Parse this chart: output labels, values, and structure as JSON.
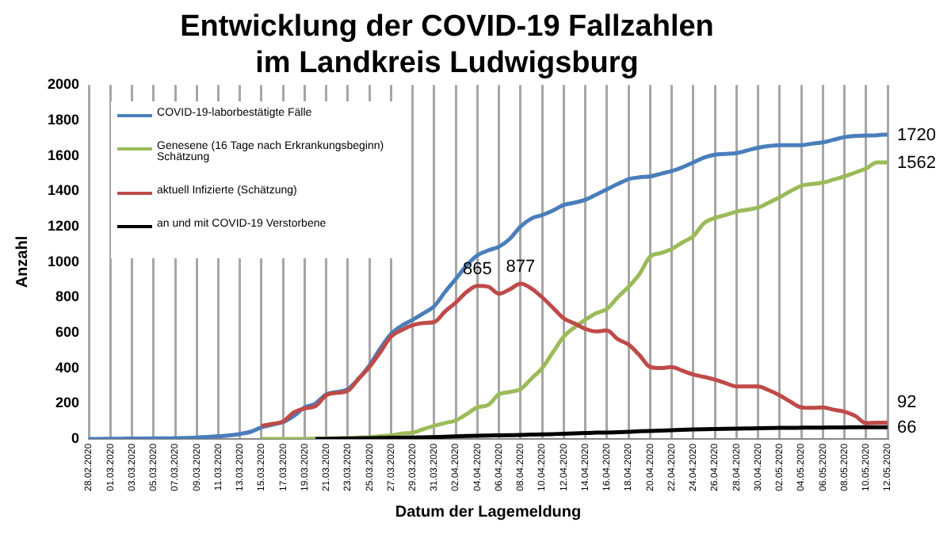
{
  "chart_data": {
    "type": "line",
    "title": "Entwicklung der COVID-19 Fallzahlen\nim Landkreis Ludwigsburg",
    "xlabel": "Datum der Lagemeldung",
    "ylabel": "Anzahl",
    "categories": [
      "28.02.2020",
      null,
      "01.03.2020",
      null,
      "03.03.2020",
      null,
      "05.03.2020",
      null,
      "07.03.2020",
      null,
      "09.03.2020",
      null,
      "11.03.2020",
      null,
      "13.03.2020",
      null,
      "15.03.2020",
      null,
      "17.03.2020",
      null,
      "19.03.2020",
      null,
      "21.03.2020",
      null,
      "23.03.2020",
      null,
      "25.03.2020",
      null,
      "27.03.2020",
      null,
      "29.03.2020",
      null,
      "31.03.2020",
      null,
      "02.04.2020",
      null,
      "04.04.2020",
      null,
      "06.04.2020",
      null,
      "08.04.2020",
      null,
      "10.04.2020",
      null,
      "12.04.2020",
      null,
      "14.04.2020",
      null,
      "16.04.2020",
      null,
      "18.04.2020",
      null,
      "20.04.2020",
      null,
      "22.04.2020",
      null,
      "24.04.2020",
      null,
      "26.04.2020",
      null,
      "28.04.2020",
      null,
      "30.04.2020",
      null,
      "02.05.2020",
      null,
      "04.05.2020",
      null,
      "06.05.2020",
      null,
      "08.05.2020",
      null,
      "10.05.2020",
      null,
      "12.05.2020"
    ],
    "series": [
      {
        "name": "COVID-19-laborbestätigte Fälle",
        "color": "#4a7ebb",
        "values": [
          0,
          0,
          1,
          1,
          2,
          2,
          3,
          3,
          4,
          5,
          8,
          11,
          15,
          20,
          28,
          40,
          65,
          80,
          95,
          130,
          178,
          200,
          252,
          265,
          281,
          340,
          415,
          510,
          593,
          640,
          673,
          710,
          750,
          830,
          904,
          980,
          1037,
          1065,
          1086,
          1130,
          1200,
          1245,
          1265,
          1290,
          1322,
          1335,
          1351,
          1380,
          1410,
          1440,
          1468,
          1478,
          1483,
          1498,
          1513,
          1535,
          1562,
          1590,
          1606,
          1610,
          1615,
          1630,
          1645,
          1655,
          1660,
          1660,
          1660,
          1668,
          1675,
          1690,
          1705,
          1712,
          1714,
          1716,
          1720
        ],
        "value_labels": [
          null,
          null,
          null,
          null,
          null,
          null,
          null,
          null,
          null,
          null,
          null,
          null,
          null,
          null,
          null,
          null,
          null,
          null,
          null,
          null,
          null,
          null,
          null,
          null,
          null,
          null,
          null,
          null,
          null,
          null,
          null,
          null,
          null,
          null,
          null,
          null,
          null,
          null,
          null,
          null,
          null,
          null,
          null,
          null,
          null,
          null,
          null,
          null,
          null,
          null,
          null,
          null,
          null,
          null,
          null,
          null,
          null,
          null,
          null,
          null,
          null,
          null,
          null,
          null,
          null,
          null,
          null,
          null,
          null,
          null,
          null,
          null,
          null,
          null,
          "1720"
        ]
      },
      {
        "name": "Genesene (16 Tage nach Erkrankungsbeginn) Schätzung",
        "color": "#9bbb59",
        "values": [
          null,
          null,
          null,
          null,
          null,
          null,
          null,
          null,
          null,
          null,
          null,
          null,
          null,
          null,
          null,
          null,
          0,
          0,
          0,
          0,
          0,
          1,
          2,
          3,
          5,
          8,
          10,
          15,
          20,
          30,
          35,
          55,
          74,
          90,
          104,
          140,
          178,
          192,
          252,
          265,
          281,
          340,
          400,
          490,
          578,
          630,
          673,
          710,
          735,
          800,
          859,
          930,
          1030,
          1050,
          1073,
          1110,
          1145,
          1219,
          1248,
          1265,
          1284,
          1295,
          1307,
          1335,
          1365,
          1400,
          1430,
          1440,
          1448,
          1465,
          1483,
          1505,
          1527,
          1562,
          1562
        ],
        "value_labels": [
          null,
          null,
          null,
          null,
          null,
          null,
          null,
          null,
          null,
          null,
          null,
          null,
          null,
          null,
          null,
          null,
          null,
          null,
          null,
          null,
          null,
          null,
          null,
          null,
          null,
          null,
          null,
          null,
          null,
          null,
          null,
          null,
          null,
          null,
          null,
          null,
          null,
          null,
          null,
          null,
          null,
          null,
          null,
          null,
          null,
          null,
          null,
          null,
          null,
          null,
          null,
          null,
          null,
          null,
          null,
          null,
          null,
          null,
          null,
          null,
          null,
          null,
          null,
          null,
          null,
          null,
          null,
          null,
          null,
          null,
          null,
          null,
          null,
          null,
          "1562"
        ]
      },
      {
        "name": "aktuell Infizierte (Schätzung)",
        "color": "#be4b48",
        "values": [
          null,
          null,
          null,
          null,
          null,
          null,
          null,
          null,
          null,
          null,
          null,
          null,
          null,
          null,
          null,
          null,
          74,
          85,
          98,
          150,
          172,
          185,
          246,
          260,
          272,
          340,
          406,
          490,
          578,
          615,
          643,
          655,
          660,
          720,
          770,
          830,
          865,
          860,
          820,
          845,
          877,
          850,
          800,
          741,
          681,
          652,
          622,
          607,
          613,
          563,
          533,
          474,
          406,
          400,
          406,
          385,
          364,
          350,
          335,
          315,
          296,
          296,
          296,
          275,
          246,
          210,
          178,
          175,
          178,
          165,
          154,
          130,
          89,
          92,
          92
        ],
        "value_labels": [
          null,
          null,
          null,
          null,
          null,
          null,
          null,
          null,
          null,
          null,
          null,
          null,
          null,
          null,
          null,
          null,
          null,
          null,
          null,
          null,
          null,
          null,
          null,
          null,
          null,
          null,
          null,
          null,
          null,
          null,
          null,
          null,
          null,
          null,
          null,
          null,
          "865",
          null,
          null,
          null,
          "877",
          null,
          null,
          null,
          null,
          null,
          null,
          null,
          null,
          null,
          null,
          null,
          null,
          null,
          null,
          null,
          null,
          null,
          null,
          null,
          null,
          null,
          null,
          null,
          null,
          null,
          null,
          null,
          null,
          null,
          null,
          null,
          null,
          null,
          "92"
        ]
      },
      {
        "name": "an und mit COVID-19 Verstorbene",
        "color": "#000000",
        "values": [
          null,
          null,
          null,
          null,
          null,
          null,
          null,
          null,
          null,
          null,
          null,
          null,
          null,
          null,
          null,
          null,
          null,
          null,
          null,
          null,
          null,
          0,
          0,
          1,
          2,
          3,
          4,
          5,
          6,
          7,
          8,
          9,
          10,
          12,
          14,
          16,
          18,
          19,
          20,
          21,
          22,
          24,
          25,
          27,
          29,
          31,
          33,
          35,
          36,
          38,
          40,
          43,
          45,
          47,
          49,
          51,
          53,
          55,
          56,
          57,
          58,
          59,
          60,
          61,
          62,
          62,
          63,
          64,
          64,
          65,
          65,
          66,
          66,
          66,
          66
        ],
        "value_labels": [
          null,
          null,
          null,
          null,
          null,
          null,
          null,
          null,
          null,
          null,
          null,
          null,
          null,
          null,
          null,
          null,
          null,
          null,
          null,
          null,
          null,
          null,
          null,
          null,
          null,
          null,
          null,
          null,
          null,
          null,
          null,
          null,
          null,
          null,
          null,
          null,
          null,
          null,
          null,
          null,
          null,
          null,
          null,
          null,
          null,
          null,
          null,
          null,
          null,
          null,
          null,
          null,
          null,
          null,
          null,
          null,
          null,
          null,
          null,
          null,
          null,
          null,
          null,
          null,
          null,
          null,
          null,
          null,
          null,
          null,
          null,
          null,
          null,
          null,
          "66"
        ]
      }
    ],
    "ylim": [
      0,
      2000
    ],
    "yticks": [
      0,
      200,
      400,
      600,
      800,
      1000,
      1200,
      1400,
      1600,
      1800,
      2000
    ],
    "grid": "x",
    "legend": "top left",
    "marker": "none",
    "line_style": "solid"
  }
}
